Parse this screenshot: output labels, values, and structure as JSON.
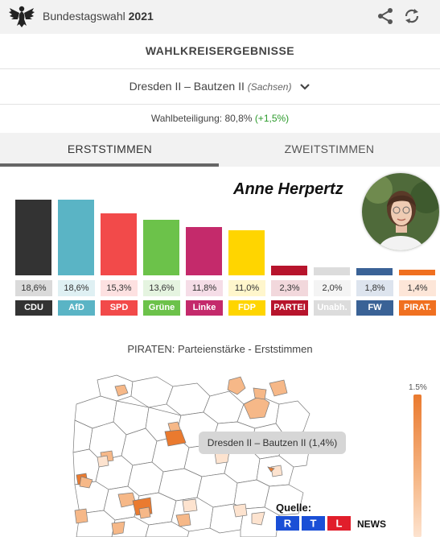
{
  "header": {
    "title_prefix": "Bundestagswahl",
    "title_year": "2021",
    "icons": [
      "eagle-logo",
      "share-icon",
      "refresh-icon"
    ]
  },
  "section_title": "WAHLKREISERGEBNISSE",
  "district": {
    "name": "Dresden II – Bautzen II",
    "state": "(Sachsen)"
  },
  "turnout": {
    "label": "Wahlbeteiligung: 80,8%",
    "delta": "(+1,5%)"
  },
  "tabs": [
    {
      "label": "ERSTSTIMMEN",
      "active": true
    },
    {
      "label": "ZWEITSTIMMEN",
      "active": false
    }
  ],
  "candidate": {
    "name": "Anne Herpertz"
  },
  "chart_data": {
    "type": "bar",
    "categories": [
      "CDU",
      "AfD",
      "SPD",
      "Grüne",
      "Linke",
      "FDP",
      "PARTEI",
      "Unabh.",
      "FW",
      "PIRAT."
    ],
    "values": [
      18.6,
      18.6,
      15.3,
      13.6,
      11.8,
      11.0,
      2.3,
      2.0,
      1.8,
      1.4
    ],
    "value_labels": [
      "18,6%",
      "18,6%",
      "15,3%",
      "13,6%",
      "11,8%",
      "11,0%",
      "2,3%",
      "2,0%",
      "1,8%",
      "1,4%"
    ],
    "colors": [
      "#333333",
      "#5ab4c5",
      "#f24a4a",
      "#6cc24a",
      "#c42a6b",
      "#ffd500",
      "#b7142c",
      "#dcdcdc",
      "#3a6296",
      "#f07020"
    ],
    "value_bg": [
      "#dadada",
      "#dff0f3",
      "#fde1e1",
      "#e5f4e0",
      "#f5dde7",
      "#fff6cc",
      "#f2d8dc",
      "#f4f4f4",
      "#dde4ee",
      "#fde6d8"
    ],
    "ylim": [
      0,
      20
    ]
  },
  "map": {
    "title": "PIRATEN: Parteienstärke - Erststimmen",
    "tooltip": "Dresden II – Bautzen II (1,4%)",
    "legend_max": "1.5%",
    "colors": {
      "high": "#ea7a2f",
      "mid": "#f6b888",
      "low": "#fde3cf",
      "none": "#ffffff",
      "border": "#7a7a7a"
    }
  },
  "source": {
    "label": "Quelle:",
    "brand_letters": [
      "R",
      "T",
      "L"
    ],
    "brand_colors": [
      "#1a4fd6",
      "#1a4fd6",
      "#e11e2b"
    ],
    "news": "NEWS"
  }
}
